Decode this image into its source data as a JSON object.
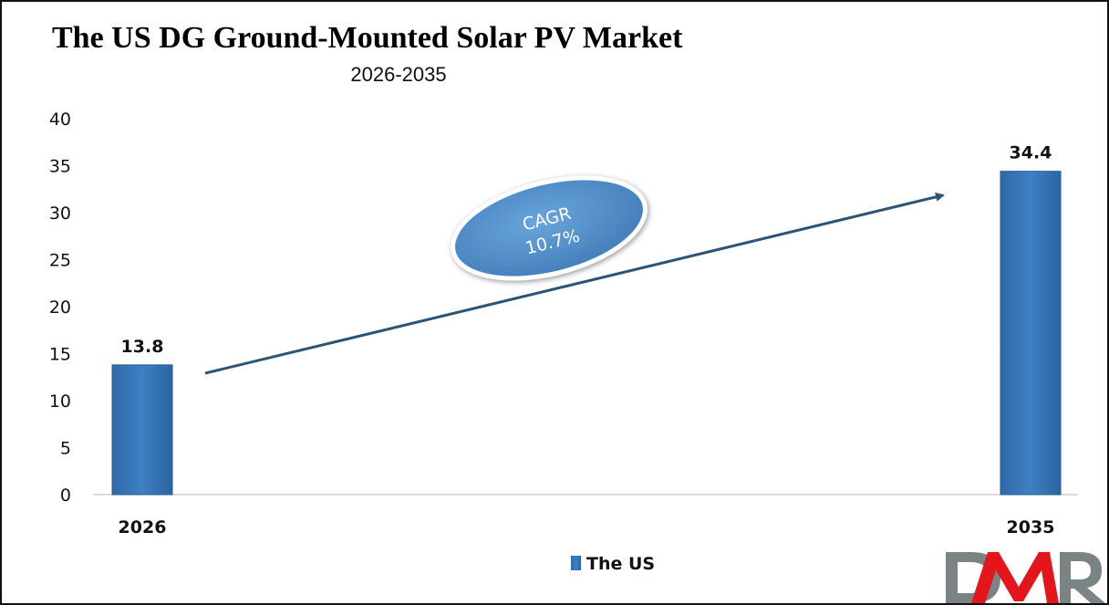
{
  "chart_data": {
    "type": "bar",
    "title": "The US DG Ground-Mounted Solar PV Market",
    "subtitle": "2026-2035",
    "categories": [
      "2026",
      "2035"
    ],
    "series": [
      {
        "name": "The US",
        "values": [
          13.8,
          34.4
        ]
      }
    ],
    "data_labels": [
      "13.8",
      "34.4"
    ],
    "ylim": [
      0,
      40
    ],
    "yticks": [
      0,
      5,
      10,
      15,
      20,
      25,
      30,
      35,
      40
    ],
    "grid": false,
    "legend": "bottom",
    "annotation": {
      "line1": "CAGR",
      "line2": "10.7%"
    },
    "colors": {
      "bar": "#3a7bbf",
      "arrow": "#2e5475",
      "ellipse": "#4f8fcc"
    }
  },
  "logo": {
    "text": "DMR",
    "colors": [
      "#7b8485",
      "#e4161b",
      "#7b8485"
    ]
  }
}
